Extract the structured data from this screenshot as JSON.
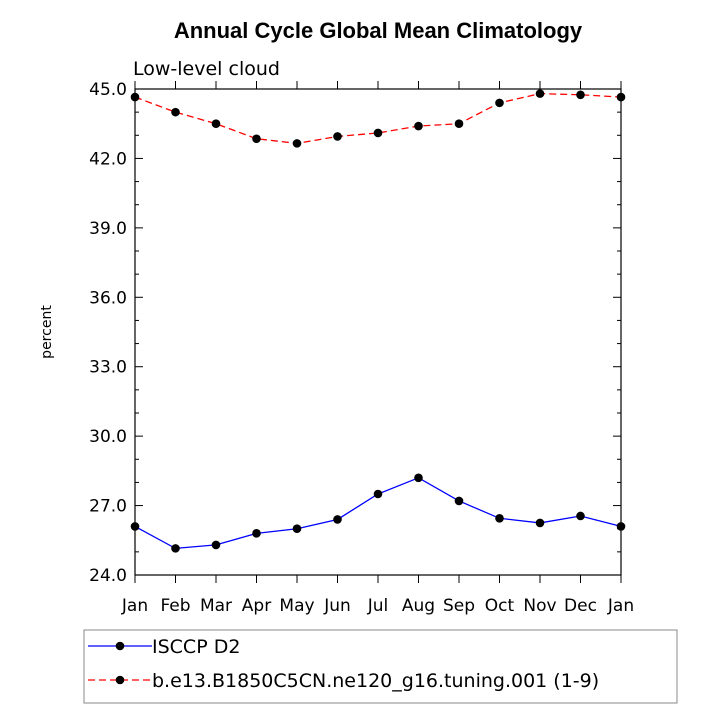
{
  "chart_data": {
    "type": "line",
    "title": "Annual Cycle Global Mean Climatology",
    "subtitle": "Low-level cloud",
    "xlabel": "",
    "ylabel": "percent",
    "categories": [
      "Jan",
      "Feb",
      "Mar",
      "Apr",
      "May",
      "Jun",
      "Jul",
      "Aug",
      "Sep",
      "Oct",
      "Nov",
      "Dec",
      "Jan"
    ],
    "ylim": [
      24.0,
      45.0
    ],
    "yticks": [
      "24.0",
      "27.0",
      "30.0",
      "33.0",
      "36.0",
      "39.0",
      "42.0",
      "45.0"
    ],
    "series": [
      {
        "name": "ISCCP D2",
        "color": "#0000ff",
        "dash": "solid",
        "values": [
          26.1,
          25.15,
          25.3,
          25.8,
          26.0,
          26.4,
          27.5,
          28.2,
          27.2,
          26.45,
          26.25,
          26.55,
          26.1
        ]
      },
      {
        "name": "b.e13.B1850C5CN.ne120_g16.tuning.001 (1-9)",
        "color": "#ff0000",
        "dash": "dashed",
        "values": [
          44.65,
          44.0,
          43.5,
          42.85,
          42.65,
          42.95,
          43.1,
          43.4,
          43.5,
          44.4,
          44.8,
          44.75,
          44.65
        ]
      }
    ],
    "legend_position": "bottom-left"
  }
}
